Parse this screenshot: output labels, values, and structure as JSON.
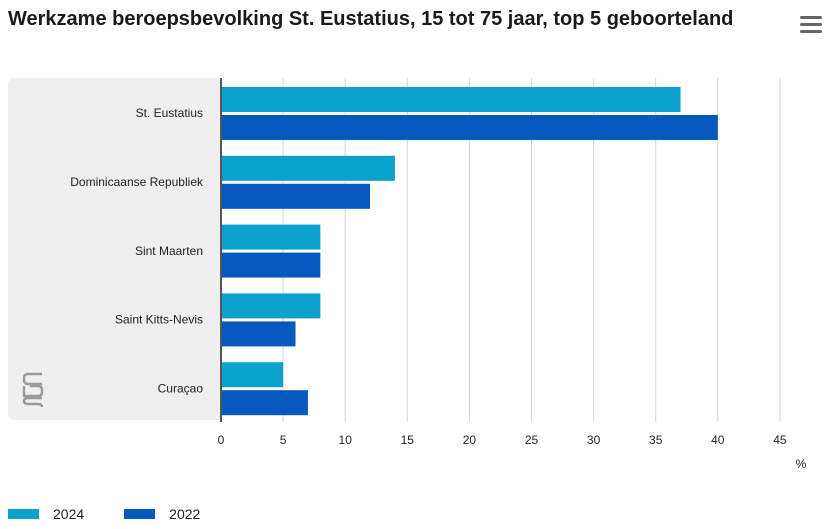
{
  "title": "Werkzame beroepsbevolking St. Eustatius, 15 tot 75 jaar, top 5 geboorteland",
  "menu_icon": "hamburger-menu-icon",
  "logo_icon": "cbs-logo-icon",
  "colors": {
    "series_2024": "#0aa2cc",
    "series_2022": "#0559be",
    "grid": "#d6d6d6",
    "panel": "#efefef"
  },
  "chart_data": {
    "type": "bar",
    "orientation": "horizontal",
    "categories": [
      "St. Eustatius",
      "Dominicaanse Republiek",
      "Sint Maarten",
      "Saint Kitts-Nevis",
      "Curaçao"
    ],
    "series": [
      {
        "name": "2024",
        "values": [
          37,
          14,
          8,
          8,
          5
        ]
      },
      {
        "name": "2022",
        "values": [
          40,
          12,
          8,
          6,
          7
        ]
      }
    ],
    "xlim": [
      0,
      45
    ],
    "xticks": [
      "0",
      "5",
      "10",
      "15",
      "20",
      "25",
      "30",
      "35",
      "40",
      "45"
    ],
    "xlabel": "%",
    "grid": true,
    "legend": "bottom-left"
  }
}
